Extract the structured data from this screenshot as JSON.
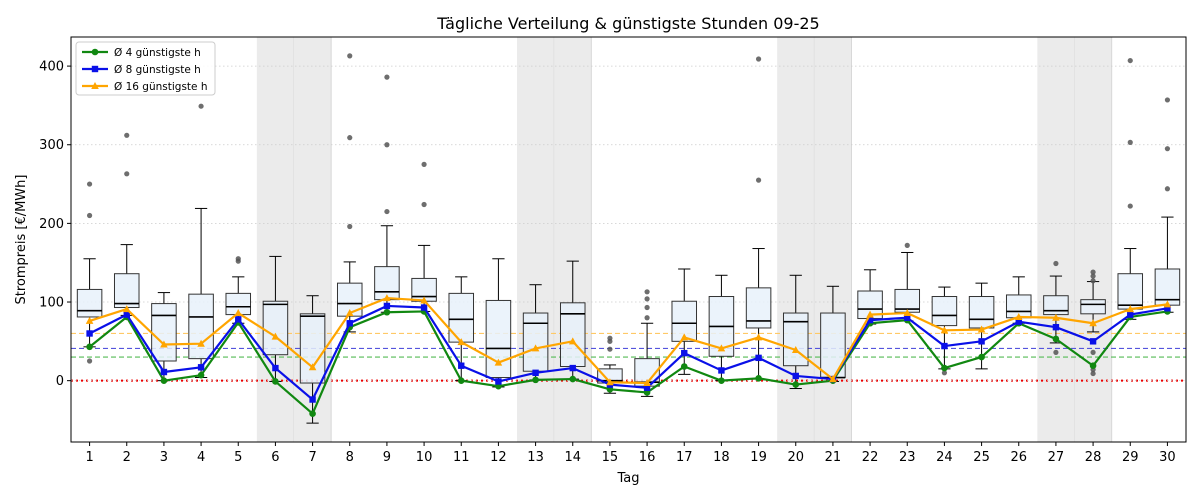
{
  "chart_data": {
    "type": "box",
    "title": "Tägliche Verteilung & günstigste Stunden 09-25",
    "xlabel": "Tag",
    "ylabel": "Strompreis [€/MWh]",
    "ylim": [
      -78,
      437
    ],
    "xlim": [
      0.5,
      30.5
    ],
    "yticks": [
      0,
      100,
      200,
      300,
      400
    ],
    "categories": [
      "1",
      "2",
      "3",
      "4",
      "5",
      "6",
      "7",
      "8",
      "9",
      "10",
      "11",
      "12",
      "13",
      "14",
      "15",
      "16",
      "17",
      "18",
      "19",
      "20",
      "21",
      "22",
      "23",
      "24",
      "25",
      "26",
      "27",
      "28",
      "29",
      "30"
    ],
    "weekend_days": [
      6,
      7,
      13,
      14,
      20,
      21,
      27,
      28
    ],
    "grid": "horizontal, dotted",
    "legend_position": "top-left",
    "colors": {
      "box_fill": "#e8f1fa",
      "box_edge": "#333333",
      "median": "#000000",
      "weekend_band": "#ebebeb",
      "series_4h": "#118811",
      "series_8h": "#0a10e8",
      "series_16h": "#ffa500",
      "zero_line": "#ee0000"
    },
    "reference_lines": [
      {
        "value": 0,
        "color": "#ee0000",
        "style": "dotted"
      },
      {
        "value": 30,
        "color": "#55bb55",
        "style": "dashed"
      },
      {
        "value": 41,
        "color": "#5555dd",
        "style": "dashed"
      },
      {
        "value": 60,
        "color": "#ffc966",
        "style": "dashed"
      }
    ],
    "boxes": [
      {
        "day": 1,
        "wlo": 43,
        "q1": 81,
        "med": 89,
        "q3": 116,
        "whi": 155,
        "fliers": [
          25,
          210,
          250
        ]
      },
      {
        "day": 2,
        "wlo": 83,
        "q1": 93,
        "med": 98,
        "q3": 136,
        "whi": 173,
        "fliers": [
          263,
          312
        ]
      },
      {
        "day": 3,
        "wlo": 0,
        "q1": 25,
        "med": 83,
        "q3": 98,
        "whi": 112,
        "fliers": []
      },
      {
        "day": 4,
        "wlo": 4,
        "q1": 28,
        "med": 81,
        "q3": 110,
        "whi": 219,
        "fliers": [
          349
        ]
      },
      {
        "day": 5,
        "wlo": 73,
        "q1": 84,
        "med": 94,
        "q3": 111,
        "whi": 132,
        "fliers": [
          152,
          155
        ]
      },
      {
        "day": 6,
        "wlo": -1,
        "q1": 33,
        "med": 97,
        "q3": 101,
        "whi": 158,
        "fliers": []
      },
      {
        "day": 7,
        "wlo": -54,
        "q1": -3,
        "med": 82,
        "q3": 85,
        "whi": 108,
        "fliers": []
      },
      {
        "day": 8,
        "wlo": 62,
        "q1": 82,
        "med": 98,
        "q3": 124,
        "whi": 151,
        "fliers": [
          196,
          309,
          413
        ]
      },
      {
        "day": 9,
        "wlo": 87,
        "q1": 103,
        "med": 113,
        "q3": 145,
        "whi": 197,
        "fliers": [
          215,
          300,
          386
        ]
      },
      {
        "day": 10,
        "wlo": 88,
        "q1": 101,
        "med": 107,
        "q3": 130,
        "whi": 172,
        "fliers": [
          224,
          275
        ]
      },
      {
        "day": 11,
        "wlo": 0,
        "q1": 49,
        "med": 78,
        "q3": 111,
        "whi": 132,
        "fliers": []
      },
      {
        "day": 12,
        "wlo": -8,
        "q1": 4,
        "med": 41,
        "q3": 102,
        "whi": 155,
        "fliers": []
      },
      {
        "day": 13,
        "wlo": 1,
        "q1": 12,
        "med": 73,
        "q3": 86,
        "whi": 122,
        "fliers": []
      },
      {
        "day": 14,
        "wlo": 2,
        "q1": 18,
        "med": 85,
        "q3": 99,
        "whi": 152,
        "fliers": []
      },
      {
        "day": 15,
        "wlo": -16,
        "q1": -3,
        "med": 0,
        "q3": 15,
        "whi": 20,
        "fliers": [
          40,
          50,
          54
        ]
      },
      {
        "day": 16,
        "wlo": -20,
        "q1": -7,
        "med": -2,
        "q3": 28,
        "whi": 73,
        "fliers": [
          80,
          93,
          104,
          113
        ]
      },
      {
        "day": 17,
        "wlo": 8,
        "q1": 50,
        "med": 73,
        "q3": 101,
        "whi": 142,
        "fliers": []
      },
      {
        "day": 18,
        "wlo": 0,
        "q1": 31,
        "med": 69,
        "q3": 107,
        "whi": 134,
        "fliers": []
      },
      {
        "day": 19,
        "wlo": 2,
        "q1": 67,
        "med": 76,
        "q3": 118,
        "whi": 168,
        "fliers": [
          255,
          409
        ]
      },
      {
        "day": 20,
        "wlo": -10,
        "q1": 19,
        "med": 75,
        "q3": 86,
        "whi": 134,
        "fliers": []
      },
      {
        "day": 21,
        "wlo": -1,
        "q1": 4,
        "med": 4,
        "q3": 86,
        "whi": 120,
        "fliers": []
      },
      {
        "day": 22,
        "wlo": 72,
        "q1": 79,
        "med": 91,
        "q3": 114,
        "whi": 141,
        "fliers": []
      },
      {
        "day": 23,
        "wlo": 76,
        "q1": 87,
        "med": 91,
        "q3": 116,
        "whi": 163,
        "fliers": [
          172
        ]
      },
      {
        "day": 24,
        "wlo": 15,
        "q1": 70,
        "med": 83,
        "q3": 107,
        "whi": 119,
        "fliers": [
          10
        ]
      },
      {
        "day": 25,
        "wlo": 15,
        "q1": 67,
        "med": 78,
        "q3": 107,
        "whi": 124,
        "fliers": []
      },
      {
        "day": 26,
        "wlo": 73,
        "q1": 80,
        "med": 88,
        "q3": 109,
        "whi": 132,
        "fliers": []
      },
      {
        "day": 27,
        "wlo": 48,
        "q1": 84,
        "med": 89,
        "q3": 108,
        "whi": 133,
        "fliers": [
          36,
          149
        ]
      },
      {
        "day": 28,
        "wlo": 62,
        "q1": 85,
        "med": 97,
        "q3": 103,
        "whi": 126,
        "fliers": [
          9,
          14,
          36,
          127,
          133,
          138
        ]
      },
      {
        "day": 29,
        "wlo": 78,
        "q1": 91,
        "med": 96,
        "q3": 136,
        "whi": 168,
        "fliers": [
          222,
          303,
          407
        ]
      },
      {
        "day": 30,
        "wlo": 87,
        "q1": 96,
        "med": 103,
        "q3": 142,
        "whi": 208,
        "fliers": [
          244,
          295,
          357
        ]
      }
    ],
    "series": [
      {
        "name": "Ø 4 günstigste h",
        "color": "#118811",
        "marker": "circle",
        "values": [
          43,
          81,
          0,
          7,
          74,
          -1,
          -42,
          68,
          87,
          88,
          0,
          -7,
          1,
          2,
          -11,
          -15,
          18,
          0,
          3,
          -5,
          0,
          73,
          77,
          16,
          30,
          73,
          53,
          19,
          81,
          88
        ]
      },
      {
        "name": "Ø 8 günstigste h",
        "color": "#0a10e8",
        "marker": "square",
        "values": [
          60,
          84,
          11,
          17,
          78,
          16,
          -24,
          73,
          95,
          93,
          19,
          -1,
          10,
          16,
          -5,
          -9,
          35,
          13,
          29,
          6,
          2,
          77,
          80,
          44,
          50,
          75,
          68,
          50,
          84,
          92
        ]
      },
      {
        "name": "Ø 16 günstigste h",
        "color": "#ffa500",
        "marker": "triangle",
        "values": [
          76,
          91,
          46,
          47,
          86,
          56,
          17,
          86,
          105,
          102,
          49,
          23,
          41,
          50,
          -2,
          -3,
          55,
          41,
          55,
          39,
          2,
          84,
          86,
          64,
          65,
          81,
          80,
          73,
          91,
          97
        ]
      }
    ]
  }
}
